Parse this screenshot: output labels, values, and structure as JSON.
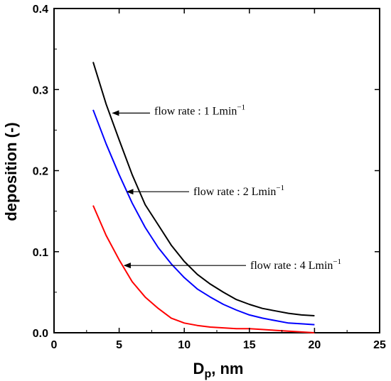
{
  "chart_data": {
    "type": "line",
    "xlabel": "Dp, nm",
    "ylabel": "deposition (-)",
    "xlim": [
      0,
      25
    ],
    "ylim": [
      0,
      0.4
    ],
    "xticks": [
      0,
      5,
      10,
      15,
      20,
      25
    ],
    "yticks": [
      0.0,
      0.1,
      0.2,
      0.3,
      0.4
    ],
    "xtick_labels": [
      "0",
      "5",
      "10",
      "15",
      "20",
      "25"
    ],
    "ytick_labels": [
      "0.0",
      "0.1",
      "0.2",
      "0.3",
      "0.4"
    ],
    "grid": false,
    "legend": "none",
    "series": [
      {
        "color": "#000000",
        "x": [
          3,
          4,
          5,
          6,
          7,
          8,
          9,
          10,
          11,
          12,
          13,
          14,
          15,
          16,
          17,
          18,
          19,
          20
        ],
        "y": [
          0.334,
          0.282,
          0.238,
          0.195,
          0.158,
          0.133,
          0.108,
          0.088,
          0.072,
          0.06,
          0.05,
          0.041,
          0.035,
          0.03,
          0.027,
          0.024,
          0.022,
          0.021
        ]
      },
      {
        "color": "#0000ff",
        "x": [
          3,
          4,
          5,
          6,
          7,
          8,
          9,
          10,
          11,
          12,
          13,
          14,
          15,
          16,
          17,
          18,
          19,
          20
        ],
        "y": [
          0.275,
          0.233,
          0.195,
          0.16,
          0.13,
          0.105,
          0.085,
          0.068,
          0.054,
          0.044,
          0.035,
          0.028,
          0.022,
          0.018,
          0.015,
          0.012,
          0.011,
          0.01
        ]
      },
      {
        "color": "#ff0000",
        "x": [
          3,
          4,
          5,
          6,
          7,
          8,
          9,
          10,
          11,
          12,
          13,
          14,
          15,
          16,
          17,
          18,
          19,
          20
        ],
        "y": [
          0.157,
          0.12,
          0.09,
          0.063,
          0.044,
          0.03,
          0.018,
          0.012,
          0.009,
          0.007,
          0.006,
          0.005,
          0.005,
          0.004,
          0.003,
          0.002,
          0.001,
          0.0
        ]
      }
    ],
    "annotations": [
      {
        "prefix": "flow rate : 1 Lmin",
        "sup": "−1",
        "point_x": 4.5,
        "point_y": 0.271
      },
      {
        "prefix": "flow rate : 2 Lmin",
        "sup": "−1",
        "point_x": 5.6,
        "point_y": 0.174
      },
      {
        "prefix": "flow rate : 4 Lmin",
        "sup": "−1",
        "point_x": 5.4,
        "point_y": 0.083
      }
    ]
  }
}
